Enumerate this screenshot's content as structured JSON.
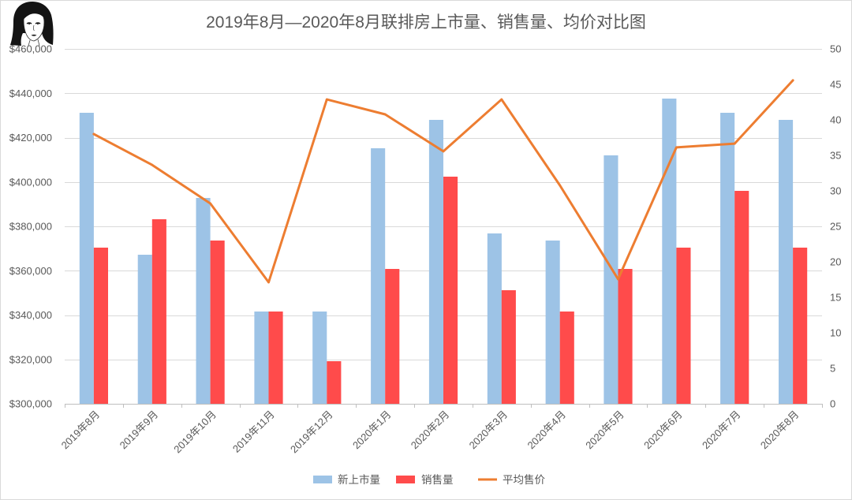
{
  "chart_data": {
    "type": "bar",
    "title": "2019年8月—2020年8月联排房上市量、销售量、均价对比图",
    "xlabel": "",
    "ylabel": "",
    "categories": [
      "2019年8月",
      "2019年9月",
      "2019年10月",
      "2019年11月",
      "2019年12月",
      "2020年1月",
      "2020年2月",
      "2020年3月",
      "2020年4月",
      "2020年5月",
      "2020年6月",
      "2020年7月",
      "2020年8月"
    ],
    "series": [
      {
        "name": "新上市量",
        "type": "bar",
        "secondary_axis": true,
        "color": "#9DC3E6",
        "values": [
          41,
          21,
          29,
          13,
          13,
          36,
          40,
          24,
          23,
          35,
          43,
          41,
          40
        ]
      },
      {
        "name": "销售量",
        "type": "bar",
        "secondary_axis": true,
        "color": "#FF4B4B",
        "values": [
          22,
          26,
          23,
          13,
          6,
          19,
          32,
          16,
          13,
          19,
          22,
          30,
          22
        ]
      },
      {
        "name": "平均售价",
        "type": "line",
        "secondary_axis": false,
        "color": "#ED7D31",
        "values": [
          421600,
          407700,
          390300,
          354800,
          437200,
          430500,
          413800,
          437200,
          398500,
          356200,
          415600,
          417300,
          445800
        ]
      }
    ],
    "y_left": {
      "ylim": [
        300000,
        460000
      ],
      "ticks": [
        300000,
        320000,
        340000,
        360000,
        380000,
        400000,
        420000,
        440000,
        460000
      ],
      "tick_labels": [
        "$300,000",
        "$320,000",
        "$340,000",
        "$360,000",
        "$380,000",
        "$400,000",
        "$420,000",
        "$440,000",
        "$460,000"
      ]
    },
    "y_right": {
      "ylim": [
        0,
        50
      ],
      "ticks": [
        0,
        5,
        10,
        15,
        20,
        25,
        30,
        35,
        40,
        45,
        50
      ],
      "tick_labels": [
        "0",
        "5",
        "10",
        "15",
        "20",
        "25",
        "30",
        "35",
        "40",
        "45",
        "50"
      ]
    },
    "grid": true,
    "legend": "bottom",
    "colors": {
      "grid": "#D9D9D9",
      "axis": "#BFBFBF",
      "text": "#595959",
      "border": "#D9D9D9"
    }
  },
  "avatar": {
    "icon": "portrait-sketch-icon"
  }
}
